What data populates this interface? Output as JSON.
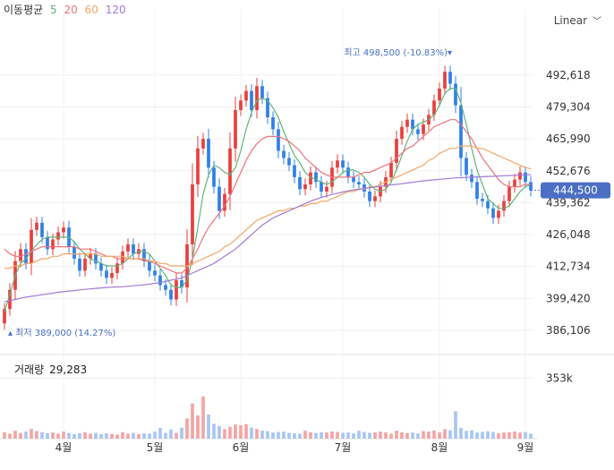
{
  "legend": {
    "label": "이동평균",
    "ma": [
      {
        "label": "5",
        "color": "#62b37a"
      },
      {
        "label": "20",
        "color": "#f0727a"
      },
      {
        "label": "60",
        "color": "#f3a763"
      },
      {
        "label": "120",
        "color": "#a07bd8"
      }
    ]
  },
  "scale_selector": {
    "label": "Linear"
  },
  "volume_panel": {
    "label": "거래량",
    "value": "29,283"
  },
  "colors": {
    "up": "#e8413e",
    "down": "#2f80e8",
    "current_badge": "#4a6fc4"
  },
  "chart_data": [
    {
      "type": "candlestick",
      "y_ticks": [
        "492,618",
        "479,304",
        "465,990",
        "452,676",
        "439,362",
        "426,048",
        "412,734",
        "399,420",
        "386,106"
      ],
      "y_tick_values": [
        492618,
        479304,
        465990,
        452676,
        439362,
        426048,
        412734,
        399420,
        386106
      ],
      "ylim": [
        379000,
        509000
      ],
      "x_ticks": [
        "4월",
        "5월",
        "6월",
        "7월",
        "8월",
        "9월"
      ],
      "x_tick_index": [
        11,
        28,
        44,
        63,
        81,
        97
      ],
      "grid": true,
      "current_price": {
        "label": "444,500",
        "value": 444500
      },
      "high_annotation": {
        "text": "최고 498,500 (-10.83%)▾",
        "value": 498500,
        "index": 84
      },
      "low_annotation": {
        "text": "▴ 최저 389,000 (14.27%)",
        "value": 389000,
        "index": 0
      },
      "close": [
        395000,
        403000,
        415000,
        420000,
        414000,
        428000,
        431000,
        425000,
        420000,
        424000,
        427000,
        429000,
        421000,
        416000,
        411000,
        416000,
        418000,
        414000,
        411000,
        408000,
        410000,
        414000,
        419000,
        422000,
        418000,
        420000,
        415000,
        411000,
        409000,
        405000,
        403000,
        399000,
        407000,
        404000,
        422000,
        447000,
        462000,
        466000,
        454000,
        446000,
        436000,
        443000,
        462000,
        478000,
        482000,
        486000,
        478000,
        488000,
        483000,
        475000,
        470000,
        461000,
        458000,
        455000,
        450000,
        445000,
        447000,
        452000,
        448000,
        444000,
        446000,
        454000,
        457000,
        454000,
        450000,
        448000,
        447000,
        444000,
        440000,
        442000,
        446000,
        450000,
        456000,
        466000,
        471000,
        474000,
        470000,
        468000,
        472000,
        476000,
        482000,
        487000,
        494000,
        489000,
        480000,
        458000,
        451000,
        448000,
        441000,
        440000,
        437000,
        433000,
        436000,
        440000,
        446000,
        449000,
        452000,
        448000,
        444500
      ],
      "series": [
        {
          "name": "5",
          "values": [
            394000,
            401000,
            409000,
            414000,
            416000,
            419000,
            422000,
            424000,
            425000,
            425000,
            425000,
            425000,
            425000,
            423000,
            420000,
            418000,
            416000,
            415000,
            414000,
            413000,
            413000,
            413000,
            414000,
            416000,
            418000,
            419000,
            419000,
            418000,
            415000,
            412000,
            409000,
            405000,
            404000,
            404000,
            407000,
            416000,
            429000,
            443000,
            451000,
            455000,
            454000,
            452000,
            451000,
            454000,
            461000,
            470000,
            477000,
            482000,
            483000,
            482000,
            479000,
            475000,
            469000,
            464000,
            459000,
            456000,
            452000,
            450000,
            449000,
            448000,
            447000,
            448000,
            450000,
            452000,
            453000,
            453000,
            452000,
            450000,
            447000,
            445000,
            444000,
            445000,
            448000,
            453000,
            459000,
            465000,
            470000,
            472000,
            473000,
            474000,
            476000,
            480000,
            485000,
            487000,
            487000,
            481000,
            472000,
            462000,
            453000,
            447000,
            441000,
            439000,
            437000,
            437000,
            438000,
            441000,
            444000,
            446000,
            447000
          ]
        },
        {
          "name": "20",
          "values": [
            420000,
            418000,
            417000,
            417000,
            418000,
            419000,
            420000,
            421000,
            421000,
            421000,
            421000,
            421000,
            421000,
            421000,
            420000,
            420000,
            420000,
            419000,
            418000,
            417000,
            417000,
            416000,
            416000,
            416000,
            416000,
            416000,
            415000,
            415000,
            414000,
            413000,
            412000,
            411000,
            410000,
            410000,
            412000,
            416000,
            420000,
            425000,
            429000,
            432000,
            435000,
            438000,
            442000,
            447000,
            452000,
            457000,
            461000,
            464000,
            466000,
            467000,
            467000,
            467000,
            466000,
            465000,
            463000,
            461000,
            458000,
            456000,
            454000,
            452000,
            451000,
            450000,
            450000,
            450000,
            450000,
            450000,
            451000,
            452000,
            452000,
            453000,
            454000,
            455000,
            456000,
            458000,
            460000,
            462000,
            463000,
            465000,
            467000,
            469000,
            471000,
            472000,
            473000,
            474000,
            474000,
            472000,
            469000,
            466000,
            462000,
            458000,
            455000,
            452000,
            449000,
            447000,
            446000,
            446000,
            446000,
            447000,
            447000
          ]
        },
        {
          "name": "60",
          "values": [
            412000,
            412000,
            413000,
            413000,
            414000,
            414000,
            415000,
            416000,
            416000,
            417000,
            417000,
            418000,
            418000,
            418000,
            418000,
            418000,
            418000,
            418000,
            417000,
            417000,
            417000,
            417000,
            417000,
            416000,
            416000,
            416000,
            416000,
            415000,
            415000,
            414000,
            414000,
            413000,
            413000,
            413000,
            413000,
            414000,
            415000,
            416000,
            417000,
            418000,
            419000,
            421000,
            422000,
            424000,
            426000,
            428000,
            430000,
            432000,
            433000,
            434000,
            435000,
            436000,
            436000,
            437000,
            437000,
            438000,
            438000,
            439000,
            439000,
            440000,
            440000,
            441000,
            442000,
            443000,
            444000,
            444000,
            445000,
            445000,
            446000,
            446000,
            447000,
            448000,
            449000,
            450000,
            451000,
            452000,
            453000,
            454000,
            455000,
            457000,
            458000,
            460000,
            461000,
            462000,
            462000,
            463000,
            463000,
            463000,
            462000,
            462000,
            461000,
            460000,
            459000,
            458000,
            457000,
            456000,
            455000,
            454000,
            453500
          ]
        },
        {
          "name": "120",
          "values": [
            398000,
            398500,
            399000,
            399500,
            400000,
            400300,
            400600,
            401000,
            401300,
            401600,
            402000,
            402200,
            402500,
            402700,
            403000,
            403200,
            403400,
            403600,
            403800,
            404000,
            404100,
            404200,
            404300,
            404500,
            404700,
            404900,
            405100,
            405400,
            405700,
            406000,
            406500,
            407000,
            407500,
            408000,
            409000,
            410000,
            411000,
            412000,
            413000,
            414000,
            415500,
            417000,
            418500,
            420000,
            422000,
            424000,
            426000,
            428000,
            430000,
            431500,
            433000,
            434000,
            435000,
            436000,
            437000,
            438000,
            439000,
            440000,
            440800,
            441500,
            442200,
            442800,
            443300,
            443800,
            444300,
            444700,
            445000,
            445300,
            445600,
            445900,
            446200,
            446500,
            446800,
            447000,
            447300,
            447600,
            447900,
            448200,
            448500,
            448700,
            448900,
            449100,
            449300,
            449500,
            449700,
            449800,
            449900,
            450000,
            450100,
            450200,
            450300,
            450400,
            450500,
            450600,
            450700,
            450800,
            450900,
            451000,
            451100
          ]
        }
      ]
    },
    {
      "type": "bar",
      "series_name": "거래량",
      "y_ticks": [
        "353k"
      ],
      "y_tick_values": [
        353000
      ],
      "ylim": [
        0,
        470000
      ],
      "values": [
        38000,
        29000,
        46000,
        33000,
        41000,
        57000,
        44000,
        38000,
        32000,
        36000,
        29000,
        41000,
        34000,
        27000,
        31000,
        38000,
        29000,
        34000,
        26000,
        31000,
        27000,
        24000,
        38000,
        29000,
        34000,
        27000,
        31000,
        29000,
        41000,
        63000,
        34000,
        54000,
        34000,
        64000,
        118000,
        205000,
        136000,
        246000,
        141000,
        87000,
        73000,
        56000,
        69000,
        83000,
        78000,
        85000,
        64000,
        57000,
        48000,
        44000,
        36000,
        39000,
        41000,
        34000,
        31000,
        29000,
        46000,
        37000,
        33000,
        38000,
        36000,
        42000,
        39000,
        34000,
        36000,
        31000,
        46000,
        39000,
        34000,
        37000,
        41000,
        36000,
        29000,
        47000,
        38000,
        33000,
        36000,
        31000,
        44000,
        42000,
        48000,
        37000,
        56000,
        49000,
        160000,
        63000,
        45000,
        49000,
        36000,
        40000,
        43000,
        39000,
        31000,
        36000,
        38000,
        42000,
        36000,
        39000,
        29283
      ]
    }
  ]
}
